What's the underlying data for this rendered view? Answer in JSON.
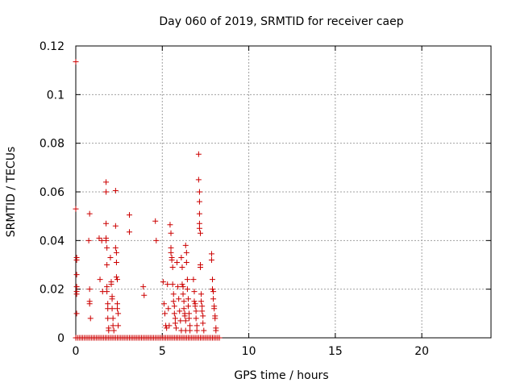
{
  "chart_data": {
    "type": "scatter",
    "title": "Day 060 of 2019, SRMTID for receiver caep",
    "xlabel": "GPS time / hours",
    "ylabel": "SRMTID / TECUs",
    "xlim": [
      0,
      24
    ],
    "ylim": [
      0,
      0.12
    ],
    "xticks": [
      0,
      5,
      10,
      15,
      20
    ],
    "xtick_labels": [
      "0",
      "5",
      "10",
      "15",
      "20"
    ],
    "yticks": [
      0,
      0.02,
      0.04,
      0.06,
      0.08,
      0.1,
      0.12
    ],
    "ytick_labels": [
      "0",
      "0.02",
      "0.04",
      "0.06",
      "0.08",
      "0.1",
      "0.12"
    ],
    "grid": true,
    "marker": "+",
    "color": "#cc0000",
    "series": [
      {
        "name": "caep",
        "points": [
          [
            0.0,
            0.1135
          ],
          [
            0.0,
            0.053
          ],
          [
            0.05,
            0.033
          ],
          [
            0.05,
            0.032
          ],
          [
            0.05,
            0.026
          ],
          [
            0.05,
            0.021
          ],
          [
            0.05,
            0.019
          ],
          [
            0.05,
            0.018
          ],
          [
            0.05,
            0.01
          ],
          [
            0.0,
            0.0
          ],
          [
            0.8,
            0.051
          ],
          [
            0.75,
            0.04
          ],
          [
            0.8,
            0.02
          ],
          [
            0.8,
            0.015
          ],
          [
            0.8,
            0.014
          ],
          [
            0.85,
            0.008
          ],
          [
            1.35,
            0.041
          ],
          [
            1.4,
            0.024
          ],
          [
            1.5,
            0.04
          ],
          [
            1.55,
            0.019
          ],
          [
            1.75,
            0.064
          ],
          [
            1.75,
            0.06
          ],
          [
            1.75,
            0.047
          ],
          [
            1.75,
            0.041
          ],
          [
            1.75,
            0.04
          ],
          [
            1.8,
            0.037
          ],
          [
            1.8,
            0.03
          ],
          [
            1.8,
            0.021
          ],
          [
            1.8,
            0.019
          ],
          [
            1.85,
            0.014
          ],
          [
            1.85,
            0.012
          ],
          [
            1.85,
            0.008
          ],
          [
            1.9,
            0.004
          ],
          [
            1.9,
            0.003
          ],
          [
            2.0,
            0.033
          ],
          [
            2.05,
            0.023
          ],
          [
            2.05,
            0.022
          ],
          [
            2.1,
            0.017
          ],
          [
            2.1,
            0.016
          ],
          [
            2.1,
            0.012
          ],
          [
            2.15,
            0.008
          ],
          [
            2.15,
            0.005
          ],
          [
            2.2,
            0.003
          ],
          [
            2.3,
            0.0605
          ],
          [
            2.3,
            0.046
          ],
          [
            2.3,
            0.037
          ],
          [
            2.35,
            0.035
          ],
          [
            2.35,
            0.031
          ],
          [
            2.35,
            0.025
          ],
          [
            2.4,
            0.024
          ],
          [
            2.4,
            0.014
          ],
          [
            2.4,
            0.012
          ],
          [
            2.45,
            0.01
          ],
          [
            2.45,
            0.005
          ],
          [
            3.1,
            0.0505
          ],
          [
            3.1,
            0.0435
          ],
          [
            3.9,
            0.021
          ],
          [
            3.95,
            0.0175
          ],
          [
            4.6,
            0.048
          ],
          [
            4.65,
            0.04
          ],
          [
            5.05,
            0.023
          ],
          [
            5.1,
            0.014
          ],
          [
            5.15,
            0.01
          ],
          [
            5.2,
            0.005
          ],
          [
            5.25,
            0.004
          ],
          [
            5.3,
            0.022
          ],
          [
            5.35,
            0.012
          ],
          [
            5.4,
            0.005
          ],
          [
            5.45,
            0.0465
          ],
          [
            5.5,
            0.043
          ],
          [
            5.5,
            0.037
          ],
          [
            5.5,
            0.035
          ],
          [
            5.55,
            0.033
          ],
          [
            5.55,
            0.032
          ],
          [
            5.6,
            0.029
          ],
          [
            5.6,
            0.022
          ],
          [
            5.65,
            0.018
          ],
          [
            5.65,
            0.015
          ],
          [
            5.7,
            0.013
          ],
          [
            5.7,
            0.01
          ],
          [
            5.75,
            0.008
          ],
          [
            5.75,
            0.006
          ],
          [
            5.8,
            0.004
          ],
          [
            5.85,
            0.031
          ],
          [
            5.9,
            0.021
          ],
          [
            5.95,
            0.016
          ],
          [
            6.0,
            0.011
          ],
          [
            6.05,
            0.007
          ],
          [
            6.1,
            0.003
          ],
          [
            6.1,
            0.033
          ],
          [
            6.15,
            0.029
          ],
          [
            6.15,
            0.022
          ],
          [
            6.2,
            0.021
          ],
          [
            6.2,
            0.018
          ],
          [
            6.25,
            0.015
          ],
          [
            6.25,
            0.012
          ],
          [
            6.3,
            0.01
          ],
          [
            6.3,
            0.009
          ],
          [
            6.35,
            0.007
          ],
          [
            6.35,
            0.003
          ],
          [
            6.35,
            0.038
          ],
          [
            6.4,
            0.035
          ],
          [
            6.4,
            0.031
          ],
          [
            6.45,
            0.024
          ],
          [
            6.45,
            0.02
          ],
          [
            6.5,
            0.016
          ],
          [
            6.5,
            0.013
          ],
          [
            6.55,
            0.01
          ],
          [
            6.55,
            0.008
          ],
          [
            6.6,
            0.005
          ],
          [
            6.6,
            0.003
          ],
          [
            6.8,
            0.024
          ],
          [
            6.85,
            0.019
          ],
          [
            6.85,
            0.015
          ],
          [
            6.9,
            0.014
          ],
          [
            6.9,
            0.013
          ],
          [
            6.95,
            0.011
          ],
          [
            6.95,
            0.008
          ],
          [
            7.0,
            0.005
          ],
          [
            7.0,
            0.003
          ],
          [
            7.1,
            0.0755
          ],
          [
            7.1,
            0.065
          ],
          [
            7.15,
            0.06
          ],
          [
            7.15,
            0.056
          ],
          [
            7.15,
            0.051
          ],
          [
            7.15,
            0.047
          ],
          [
            7.15,
            0.045
          ],
          [
            7.2,
            0.043
          ],
          [
            7.2,
            0.03
          ],
          [
            7.2,
            0.029
          ],
          [
            7.25,
            0.018
          ],
          [
            7.25,
            0.015
          ],
          [
            7.3,
            0.013
          ],
          [
            7.3,
            0.011
          ],
          [
            7.35,
            0.009
          ],
          [
            7.35,
            0.006
          ],
          [
            7.4,
            0.003
          ],
          [
            7.85,
            0.0345
          ],
          [
            7.85,
            0.032
          ],
          [
            7.9,
            0.024
          ],
          [
            7.9,
            0.02
          ],
          [
            7.95,
            0.019
          ],
          [
            7.95,
            0.016
          ],
          [
            8.0,
            0.013
          ],
          [
            8.0,
            0.012
          ],
          [
            8.05,
            0.009
          ],
          [
            8.05,
            0.008
          ],
          [
            8.1,
            0.004
          ],
          [
            8.1,
            0.003
          ]
        ]
      }
    ],
    "baseline_runs": [
      [
        0.0,
        8.3
      ]
    ],
    "baseline_value": 0.0,
    "baseline_step": 0.1
  }
}
